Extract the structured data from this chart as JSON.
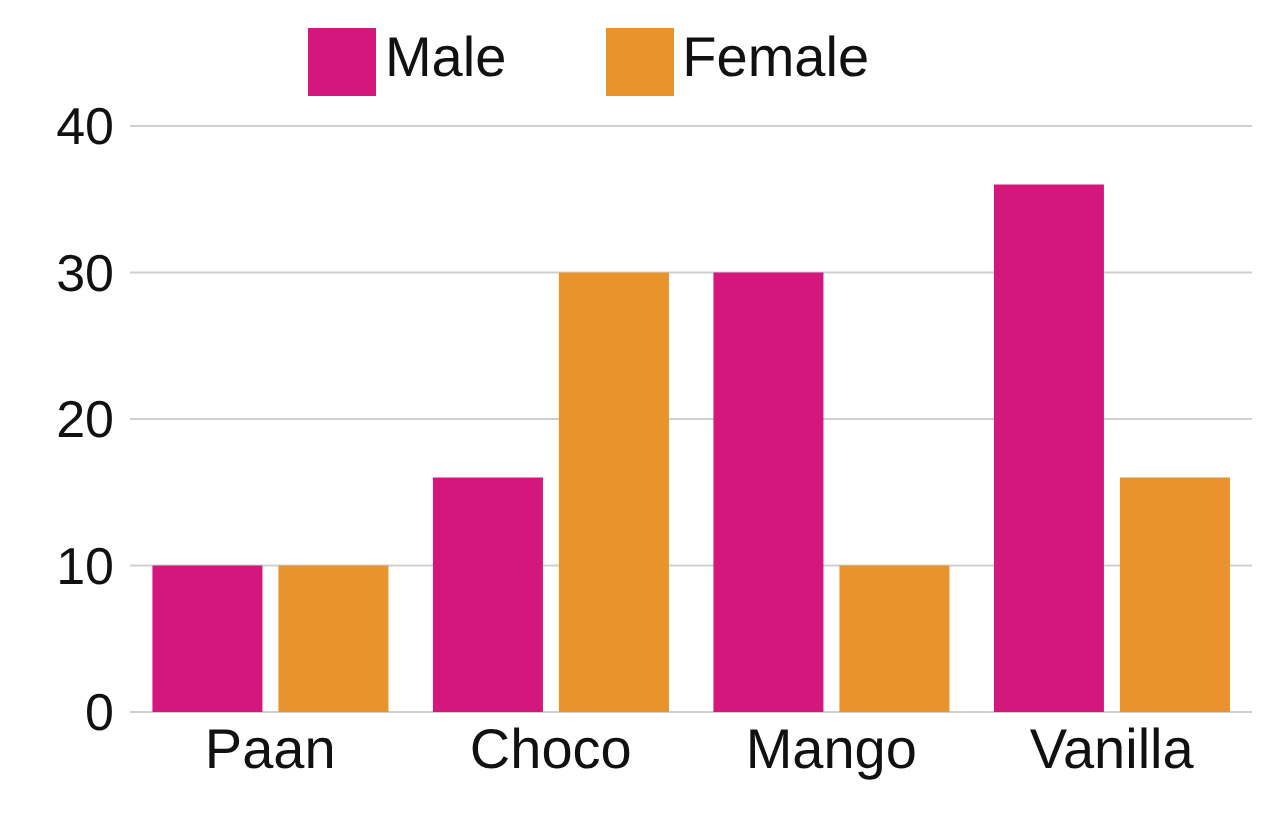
{
  "chart_data": {
    "type": "bar",
    "categories": [
      "Paan",
      "Choco",
      "Mango",
      "Vanilla"
    ],
    "series": [
      {
        "name": "Male",
        "color": "#d4177c",
        "values": [
          10,
          16,
          30,
          36
        ]
      },
      {
        "name": "Female",
        "color": "#e8932c",
        "values": [
          10,
          30,
          10,
          16
        ]
      }
    ],
    "ylim": [
      0,
      40
    ],
    "yticks": [
      0,
      10,
      20,
      30,
      40
    ],
    "grid": "y",
    "legend": "top"
  }
}
